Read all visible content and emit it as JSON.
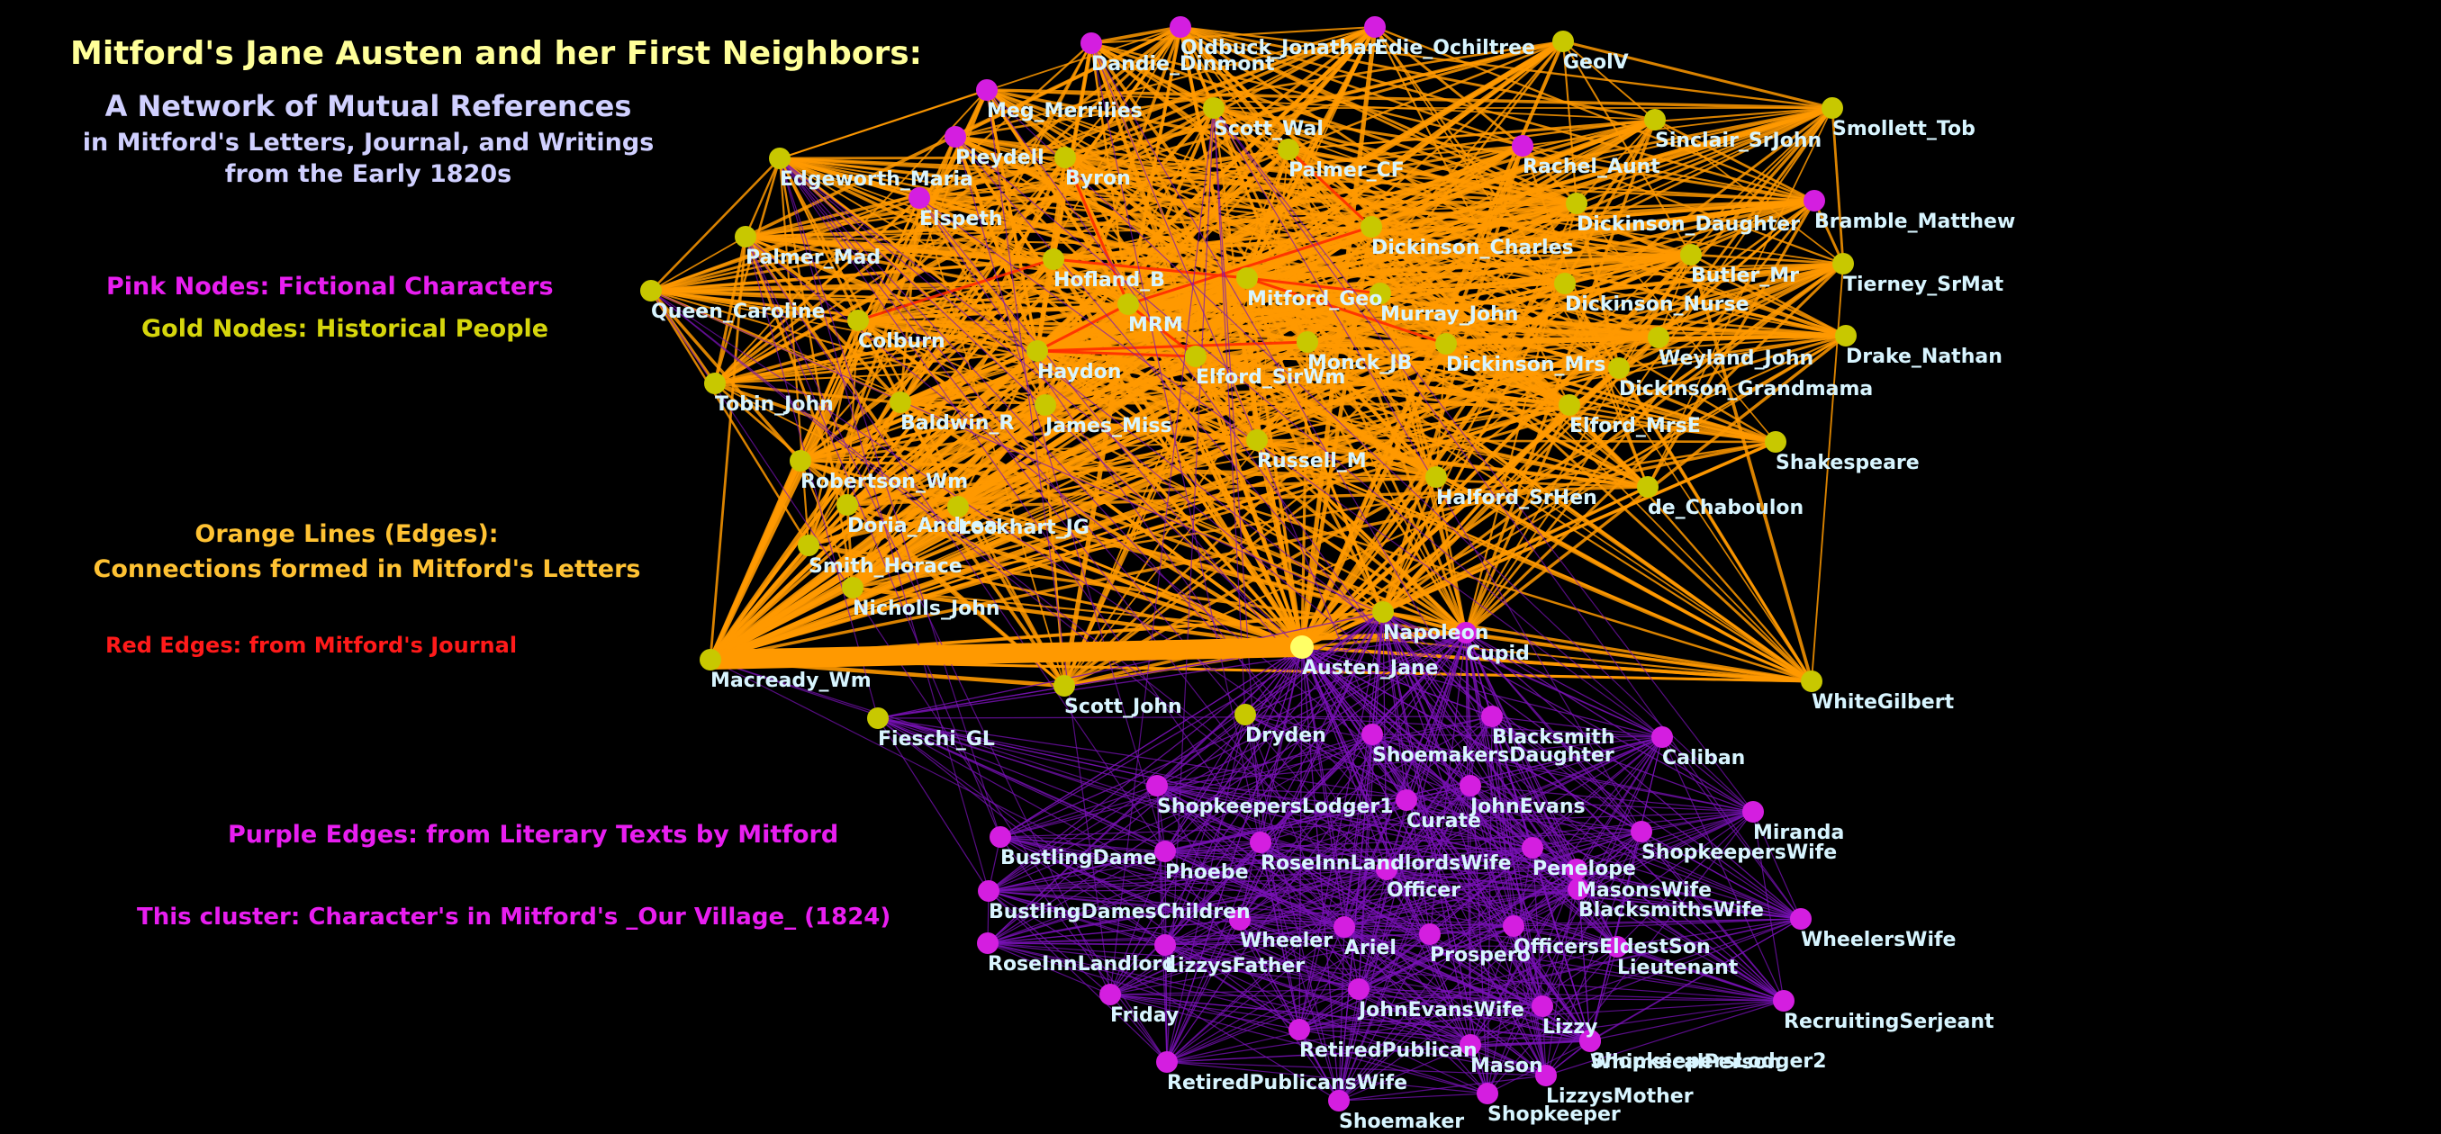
{
  "title": "Mitford's Jane Austen and her First Neighbors:",
  "subtitle_lines": [
    "A Network of Mutual References",
    "in Mitford's Letters, Journal, and Writings",
    "from the Early 1820s"
  ],
  "legend": {
    "pink_nodes": "Pink Nodes: Fictional Characters",
    "gold_nodes": "Gold Nodes: Historical People",
    "orange_edges": "Orange Lines (Edges):",
    "orange_edges_detail": "Connections formed in Mitford's Letters",
    "red_edges": "Red Edges: from Mitford's Journal",
    "purple_edges": "Purple Edges: from Literary Texts by Mitford",
    "cluster_note": "This cluster: Character's in Mitford's _Our Village_ (1824)"
  },
  "colors": {
    "background": "#000000",
    "fictional_node": "#d41ee0",
    "historical_node": "#c8c800",
    "central_node": "#ffff66",
    "letters_edge": "#ff9900",
    "journal_edge": "#ff2a00",
    "literary_edge": "#7a12b8",
    "node_label": "#d8f5ff"
  },
  "nodes": [
    {
      "name": "Dandie_Dinmont",
      "type": "fictional"
    },
    {
      "name": "Oldbuck_Jonathan",
      "type": "fictional"
    },
    {
      "name": "Edie_Ochiltree",
      "type": "fictional"
    },
    {
      "name": "GeolV",
      "type": "historical"
    },
    {
      "name": "Meg_Merrilies",
      "type": "fictional"
    },
    {
      "name": "Scott_Wal",
      "type": "historical"
    },
    {
      "name": "Sinclair_SrJohn",
      "type": "historical"
    },
    {
      "name": "Smollett_Tob",
      "type": "historical"
    },
    {
      "name": "Pleydell",
      "type": "fictional"
    },
    {
      "name": "Byron",
      "type": "historical"
    },
    {
      "name": "Palmer_CF",
      "type": "historical"
    },
    {
      "name": "Rachel_Aunt",
      "type": "fictional"
    },
    {
      "name": "Edgeworth_Maria",
      "type": "historical"
    },
    {
      "name": "Elspeth",
      "type": "fictional"
    },
    {
      "name": "Dickinson_Daughter",
      "type": "historical"
    },
    {
      "name": "Bramble_Matthew",
      "type": "fictional"
    },
    {
      "name": "Dickinson_Charles",
      "type": "historical"
    },
    {
      "name": "Palmer_Mad",
      "type": "historical"
    },
    {
      "name": "Hofland_B",
      "type": "historical"
    },
    {
      "name": "Butler_Mr",
      "type": "historical"
    },
    {
      "name": "Tierney_SrMat",
      "type": "historical"
    },
    {
      "name": "Mitford_Geo",
      "type": "historical"
    },
    {
      "name": "Queen_Caroline",
      "type": "historical"
    },
    {
      "name": "MRM",
      "type": "historical"
    },
    {
      "name": "Murray_John",
      "type": "historical"
    },
    {
      "name": "Dickinson_Nurse",
      "type": "historical"
    },
    {
      "name": "Colburn",
      "type": "historical"
    },
    {
      "name": "Haydon",
      "type": "historical"
    },
    {
      "name": "Elford_SirWm",
      "type": "historical"
    },
    {
      "name": "Monck_JB",
      "type": "historical"
    },
    {
      "name": "Dickinson_Mrs",
      "type": "historical"
    },
    {
      "name": "Weyland_John",
      "type": "historical"
    },
    {
      "name": "Drake_Nathan",
      "type": "historical"
    },
    {
      "name": "Tobin_John",
      "type": "historical"
    },
    {
      "name": "Dickinson_Grandmama",
      "type": "historical"
    },
    {
      "name": "Baldwin_R",
      "type": "historical"
    },
    {
      "name": "James_Miss",
      "type": "historical"
    },
    {
      "name": "Elford_MrsE",
      "type": "historical"
    },
    {
      "name": "Shakespeare",
      "type": "historical"
    },
    {
      "name": "Russell_M",
      "type": "historical"
    },
    {
      "name": "Robertson_Wm",
      "type": "historical"
    },
    {
      "name": "Halford_SrHen",
      "type": "historical"
    },
    {
      "name": "de_Chaboulon",
      "type": "historical"
    },
    {
      "name": "Doria_Andrea",
      "type": "historical"
    },
    {
      "name": "Lockhart_JG",
      "type": "historical"
    },
    {
      "name": "Smith_Horace",
      "type": "historical"
    },
    {
      "name": "Nicholls_John",
      "type": "historical"
    },
    {
      "name": "Napoleon",
      "type": "historical"
    },
    {
      "name": "Austen_Jane",
      "type": "central"
    },
    {
      "name": "Cupid",
      "type": "fictional"
    },
    {
      "name": "Macready_Wm",
      "type": "historical"
    },
    {
      "name": "Scott_John",
      "type": "historical"
    },
    {
      "name": "WhiteGilbert",
      "type": "historical"
    },
    {
      "name": "Fieschi_GL",
      "type": "historical"
    },
    {
      "name": "Dryden",
      "type": "historical"
    },
    {
      "name": "Blacksmith",
      "type": "fictional"
    },
    {
      "name": "ShoemakersDaughter",
      "type": "fictional"
    },
    {
      "name": "Caliban",
      "type": "fictional"
    },
    {
      "name": "ShopkeepersLodger1",
      "type": "fictional"
    },
    {
      "name": "Curate",
      "type": "fictional"
    },
    {
      "name": "JohnEvans",
      "type": "fictional"
    },
    {
      "name": "Miranda",
      "type": "fictional"
    },
    {
      "name": "BustlingDame",
      "type": "fictional"
    },
    {
      "name": "Phoebe",
      "type": "fictional"
    },
    {
      "name": "RoseInnLandlordsWife",
      "type": "fictional"
    },
    {
      "name": "Penelope",
      "type": "fictional"
    },
    {
      "name": "ShopkeepersWife",
      "type": "fictional"
    },
    {
      "name": "Officer",
      "type": "fictional"
    },
    {
      "name": "MasonsWife",
      "type": "fictional"
    },
    {
      "name": "BustlingDamesChildren",
      "type": "fictional"
    },
    {
      "name": "BlacksmithsWife",
      "type": "fictional"
    },
    {
      "name": "WheelersWife",
      "type": "fictional"
    },
    {
      "name": "RoseInnLandlord",
      "type": "fictional"
    },
    {
      "name": "LizzysFather",
      "type": "fictional"
    },
    {
      "name": "Wheeler",
      "type": "fictional"
    },
    {
      "name": "Ariel",
      "type": "fictional"
    },
    {
      "name": "Prospero",
      "type": "fictional"
    },
    {
      "name": "OfficersEldestSon",
      "type": "fictional"
    },
    {
      "name": "Lieutenant",
      "type": "fictional"
    },
    {
      "name": "Friday",
      "type": "fictional"
    },
    {
      "name": "JohnEvansWife",
      "type": "fictional"
    },
    {
      "name": "Lizzy",
      "type": "fictional"
    },
    {
      "name": "RecruitingSerjeant",
      "type": "fictional"
    },
    {
      "name": "WhimsicalPerson",
      "type": "fictional"
    },
    {
      "name": "RetiredPublican",
      "type": "fictional"
    },
    {
      "name": "ShopkeepersLodger2",
      "type": "fictional"
    },
    {
      "name": "Mason",
      "type": "fictional"
    },
    {
      "name": "RetiredPublicansWife",
      "type": "fictional"
    },
    {
      "name": "LizzysMother",
      "type": "fictional"
    },
    {
      "name": "Shoemaker",
      "type": "fictional"
    },
    {
      "name": "Shopkeeper",
      "type": "fictional"
    }
  ]
}
